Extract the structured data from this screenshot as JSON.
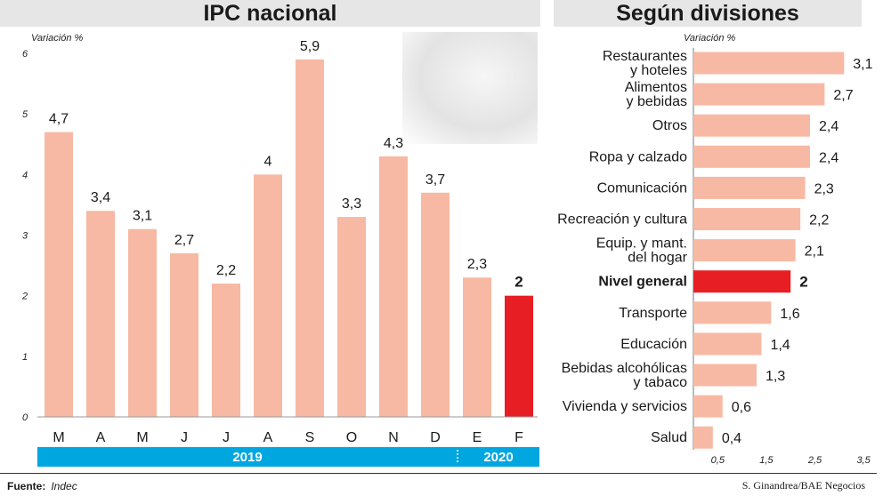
{
  "headline_left": "IPC nacional",
  "headline_right": "Según divisiones",
  "footer": {
    "source_label": "Fuente:",
    "source_value": "Indec",
    "credit": "S. Ginandrea/BAE Negocios"
  },
  "colors": {
    "bar": "#f7b9a3",
    "highlight": "#e81e25",
    "year_band": "#00a6e0",
    "panel": "#e6e6e6"
  },
  "chart_data": [
    {
      "type": "bar",
      "title": "IPC nacional",
      "ylabel": "Variación %",
      "ylim": [
        0,
        6
      ],
      "yticks": [
        0,
        1,
        2,
        3,
        4,
        5,
        6
      ],
      "categories": [
        "M",
        "A",
        "M",
        "J",
        "J",
        "A",
        "S",
        "O",
        "N",
        "D",
        "E",
        "F"
      ],
      "values": [
        4.7,
        3.4,
        3.1,
        2.7,
        2.2,
        4,
        5.9,
        3.3,
        4.3,
        3.7,
        2.3,
        2
      ],
      "value_labels": [
        "4,7",
        "3,4",
        "3,1",
        "2,7",
        "2,2",
        "4",
        "5,9",
        "3,3",
        "4,3",
        "3,7",
        "2,3",
        "2"
      ],
      "highlight_index": 11,
      "year_groups": [
        {
          "label": "2019",
          "span": 10
        },
        {
          "label": "2020",
          "span": 2
        }
      ],
      "grid": false
    },
    {
      "type": "bar",
      "orientation": "horizontal",
      "title": "Según divisiones",
      "xlabel": "Variación %",
      "xlim": [
        0,
        3.5
      ],
      "xticks": [
        0.5,
        1.5,
        2.5,
        3.5
      ],
      "xtick_labels": [
        "0,5",
        "1,5",
        "2,5",
        "3,5"
      ],
      "categories": [
        "Restaurantes\ny hoteles",
        "Alimentos\ny bebidas",
        "Otros",
        "Ropa y calzado",
        "Comunicación",
        "Recreación y cultura",
        "Equip. y mant.\ndel hogar",
        "Nivel general",
        "Transporte",
        "Educación",
        "Bebidas alcohólicas\ny tabaco",
        "Vivienda y servicios",
        "Salud"
      ],
      "values": [
        3.1,
        2.7,
        2.4,
        2.4,
        2.3,
        2.2,
        2.1,
        2,
        1.6,
        1.4,
        1.3,
        0.6,
        0.4
      ],
      "value_labels": [
        "3,1",
        "2,7",
        "2,4",
        "2,4",
        "2,3",
        "2,2",
        "2,1",
        "2",
        "1,6",
        "1,4",
        "1,3",
        "0,6",
        "0,4"
      ],
      "highlight_index": 7,
      "grid": false
    }
  ]
}
